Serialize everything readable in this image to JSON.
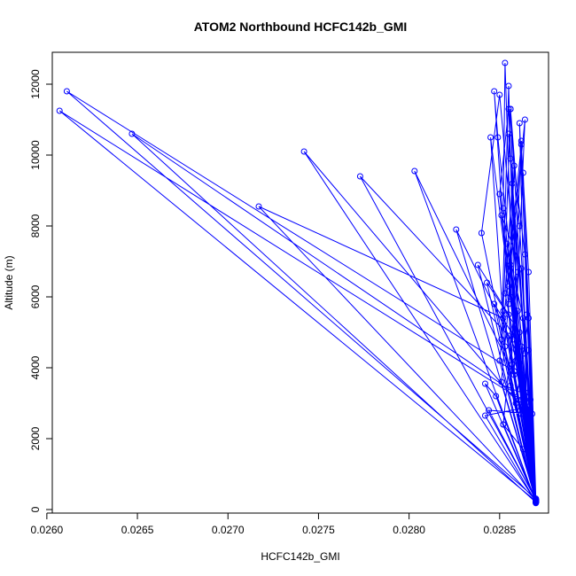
{
  "chart_data": {
    "type": "scatter",
    "title": "ATOM2 Northbound HCFC142b_GMI",
    "xlabel": "HCFC142b_GMI",
    "ylabel": "Altitude (m)",
    "xlim": [
      0.02603,
      0.02877
    ],
    "ylim": [
      -100,
      12900
    ],
    "x_ticks": [
      0.026,
      0.0265,
      0.027,
      0.0275,
      0.028,
      0.0285
    ],
    "x_tick_labels": [
      "0.0260",
      "0.0265",
      "0.0270",
      "0.0275",
      "0.0280",
      "0.0285"
    ],
    "y_ticks": [
      0,
      2000,
      4000,
      6000,
      8000,
      10000,
      12000
    ],
    "y_tick_labels": [
      "0",
      "2000",
      "4000",
      "6000",
      "8000",
      "10000",
      "12000"
    ],
    "series": [
      {
        "name": "HCFC142b_GMI",
        "color": "#0000ff",
        "points": [
          [
            0.0287,
            200
          ],
          [
            0.02852,
            5600
          ],
          [
            0.02856,
            11300
          ],
          [
            0.02861,
            3400
          ],
          [
            0.0287,
            250
          ],
          [
            0.02851,
            4800
          ],
          [
            0.02855,
            11950
          ],
          [
            0.02859,
            4200
          ],
          [
            0.0287,
            300
          ],
          [
            0.02852,
            8500
          ],
          [
            0.02853,
            12600
          ],
          [
            0.02858,
            4800
          ],
          [
            0.0287,
            180
          ],
          [
            0.02865,
            5500
          ],
          [
            0.02862,
            10400
          ],
          [
            0.02856,
            3500
          ],
          [
            0.0287,
            230
          ],
          [
            0.0284,
            7800
          ],
          [
            0.0285,
            11700
          ],
          [
            0.02865,
            3200
          ],
          [
            0.0287,
            260
          ],
          [
            0.02856,
            6900
          ],
          [
            0.02864,
            11000
          ],
          [
            0.02858,
            3900
          ],
          [
            0.0287,
            210
          ],
          [
            0.0285,
            8900
          ],
          [
            0.02855,
            11300
          ],
          [
            0.02862,
            2700
          ],
          [
            0.0287,
            280
          ],
          [
            0.02849,
            10500
          ],
          [
            0.02847,
            11800
          ],
          [
            0.02857,
            4100
          ],
          [
            0.0287,
            240
          ],
          [
            0.02845,
            10500
          ],
          [
            0.02853,
            4600
          ],
          [
            0.0287,
            300
          ],
          [
            0.02863,
            9500
          ],
          [
            0.02866,
            5400
          ],
          [
            0.02859,
            3000
          ],
          [
            0.0287,
            190
          ],
          [
            0.02864,
            7200
          ],
          [
            0.02858,
            9700
          ],
          [
            0.02855,
            5800
          ],
          [
            0.02851,
            3600
          ],
          [
            0.0287,
            270
          ],
          [
            0.02855,
            10600
          ],
          [
            0.0286,
            6700
          ],
          [
            0.02852,
            2400
          ],
          [
            0.0287,
            220
          ],
          [
            0.02861,
            8000
          ],
          [
            0.02856,
            11300
          ],
          [
            0.02864,
            4400
          ],
          [
            0.0287,
            250
          ],
          [
            0.02857,
            9200
          ],
          [
            0.02853,
            6100
          ],
          [
            0.02862,
            3800
          ],
          [
            0.0287,
            200
          ],
          [
            0.0285,
            4200
          ],
          [
            0.02862,
            10300
          ],
          [
            0.02866,
            6700
          ],
          [
            0.0287,
            310
          ],
          [
            0.02611,
            11800
          ],
          [
            0.02858,
            3900
          ],
          [
            0.0287,
            240
          ],
          [
            0.02607,
            11250
          ],
          [
            0.02862,
            3100
          ],
          [
            0.0287,
            200
          ],
          [
            0.02647,
            10600
          ],
          [
            0.02858,
            3300
          ],
          [
            0.0287,
            260
          ],
          [
            0.02717,
            8550
          ],
          [
            0.02852,
            5400
          ],
          [
            0.0287,
            230
          ],
          [
            0.02742,
            10100
          ],
          [
            0.02862,
            2900
          ],
          [
            0.0287,
            280
          ],
          [
            0.02773,
            9400
          ],
          [
            0.02855,
            4900
          ],
          [
            0.0287,
            210
          ],
          [
            0.02803,
            9550
          ],
          [
            0.02858,
            3800
          ],
          [
            0.0287,
            250
          ],
          [
            0.02826,
            7900
          ],
          [
            0.02859,
            4500
          ],
          [
            0.0287,
            190
          ],
          [
            0.02838,
            6900
          ],
          [
            0.02855,
            5500
          ],
          [
            0.0287,
            300
          ],
          [
            0.02843,
            6400
          ],
          [
            0.02861,
            5000
          ],
          [
            0.0287,
            240
          ],
          [
            0.02842,
            3550
          ],
          [
            0.02848,
            3200
          ],
          [
            0.0287,
            220
          ],
          [
            0.02842,
            2650
          ],
          [
            0.02866,
            2900
          ],
          [
            0.0287,
            270
          ],
          [
            0.02844,
            2800
          ],
          [
            0.02868,
            2700
          ],
          [
            0.0287,
            200
          ],
          [
            0.02855,
            6300
          ],
          [
            0.02862,
            4600
          ],
          [
            0.0287,
            230
          ],
          [
            0.02847,
            5800
          ],
          [
            0.0286,
            4700
          ],
          [
            0.0287,
            260
          ],
          [
            0.02851,
            8300
          ],
          [
            0.02862,
            6800
          ],
          [
            0.0287,
            210
          ],
          [
            0.02861,
            10900
          ],
          [
            0.02865,
            2600
          ],
          [
            0.0287,
            250
          ],
          [
            0.02856,
            9900
          ],
          [
            0.02866,
            3300
          ],
          [
            0.0287,
            280
          ],
          [
            0.02852,
            2400
          ],
          [
            0.02863,
            1700
          ],
          [
            0.0287,
            200
          ],
          [
            0.02867,
            3100
          ],
          [
            0.02866,
            4500
          ],
          [
            0.0287,
            240
          ],
          [
            0.02854,
            7500
          ],
          [
            0.02863,
            5400
          ],
          [
            0.0287,
            220
          ],
          [
            0.0286,
            5600
          ],
          [
            0.02856,
            6000
          ],
          [
            0.0287,
            190
          ]
        ]
      }
    ]
  }
}
